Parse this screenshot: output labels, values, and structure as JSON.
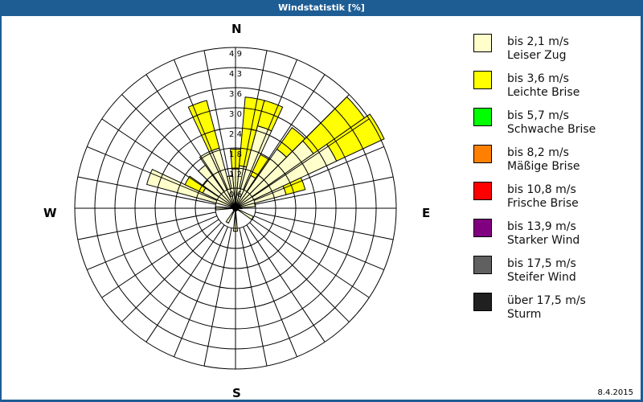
{
  "window": {
    "title": "Windstatistik [%]",
    "date": "8.4.2015"
  },
  "compass": {
    "n": "N",
    "e": "E",
    "s": "S",
    "w": "W"
  },
  "legend": [
    {
      "line1": "bis 2,1 m/s",
      "line2": "Leiser Zug",
      "color": "#ffffcc"
    },
    {
      "line1": "bis 3,6 m/s",
      "line2": "Leichte Brise",
      "color": "#ffff00"
    },
    {
      "line1": "bis 5,7 m/s",
      "line2": "Schwache Brise",
      "color": "#00ff00"
    },
    {
      "line1": "bis 8,2 m/s",
      "line2": "Mäßige Brise",
      "color": "#ff8000"
    },
    {
      "line1": "bis 10,8 m/s",
      "line2": "Frische Brise",
      "color": "#ff0000"
    },
    {
      "line1": "bis 13,9 m/s",
      "line2": "Starker Wind",
      "color": "#800080"
    },
    {
      "line1": "bis 17,5 m/s",
      "line2": "Steifer Wind",
      "color": "#606060"
    },
    {
      "line1": "über 17,5 m/s",
      "line2": "Sturm",
      "color": "#202020"
    }
  ],
  "chart_data": {
    "type": "polar-bar (wind rose)",
    "title": "Windstatistik [%]",
    "radial_unit": "%",
    "radial_ticks": [
      "0,6",
      "1,2",
      "1,8",
      "2,4",
      "3,0",
      "3,6",
      "4,3",
      "4,9"
    ],
    "radial_max": 4.9,
    "sector_width_deg": 10,
    "grid": {
      "rings": 8,
      "spokes": 32
    },
    "series_order": [
      "bis 2,1 m/s",
      "bis 3,6 m/s"
    ],
    "sectors": [
      {
        "dir": 0,
        "values": [
          1.2,
          0.6
        ]
      },
      {
        "dir": 10,
        "values": [
          1.3,
          2.1
        ]
      },
      {
        "dir": 20,
        "values": [
          2.6,
          0.8
        ]
      },
      {
        "dir": 30,
        "values": [
          1.1,
          0.7
        ]
      },
      {
        "dir": 40,
        "values": [
          2.2,
          0.8
        ]
      },
      {
        "dir": 50,
        "values": [
          2.9,
          1.9
        ]
      },
      {
        "dir": 60,
        "values": [
          3.4,
          1.6
        ]
      },
      {
        "dir": 70,
        "values": [
          1.6,
          0.6
        ]
      },
      {
        "dir": 80,
        "values": [
          0.6,
          0.0
        ]
      },
      {
        "dir": 90,
        "values": [
          0.2,
          0.0
        ]
      },
      {
        "dir": 120,
        "values": [
          0.6,
          0.0
        ]
      },
      {
        "dir": 180,
        "values": [
          0.7,
          0.0
        ]
      },
      {
        "dir": 210,
        "values": [
          0.5,
          0.0
        ]
      },
      {
        "dir": 270,
        "values": [
          0.6,
          0.0
        ]
      },
      {
        "dir": 290,
        "values": [
          2.8,
          0.0
        ]
      },
      {
        "dir": 300,
        "values": [
          1.1,
          0.6
        ]
      },
      {
        "dir": 310,
        "values": [
          1.2,
          0.0
        ]
      },
      {
        "dir": 320,
        "values": [
          1.6,
          0.0
        ]
      },
      {
        "dir": 330,
        "values": [
          1.9,
          0.0
        ]
      },
      {
        "dir": 340,
        "values": [
          1.9,
          1.5
        ]
      },
      {
        "dir": 350,
        "values": [
          1.0,
          0.0
        ]
      }
    ]
  }
}
